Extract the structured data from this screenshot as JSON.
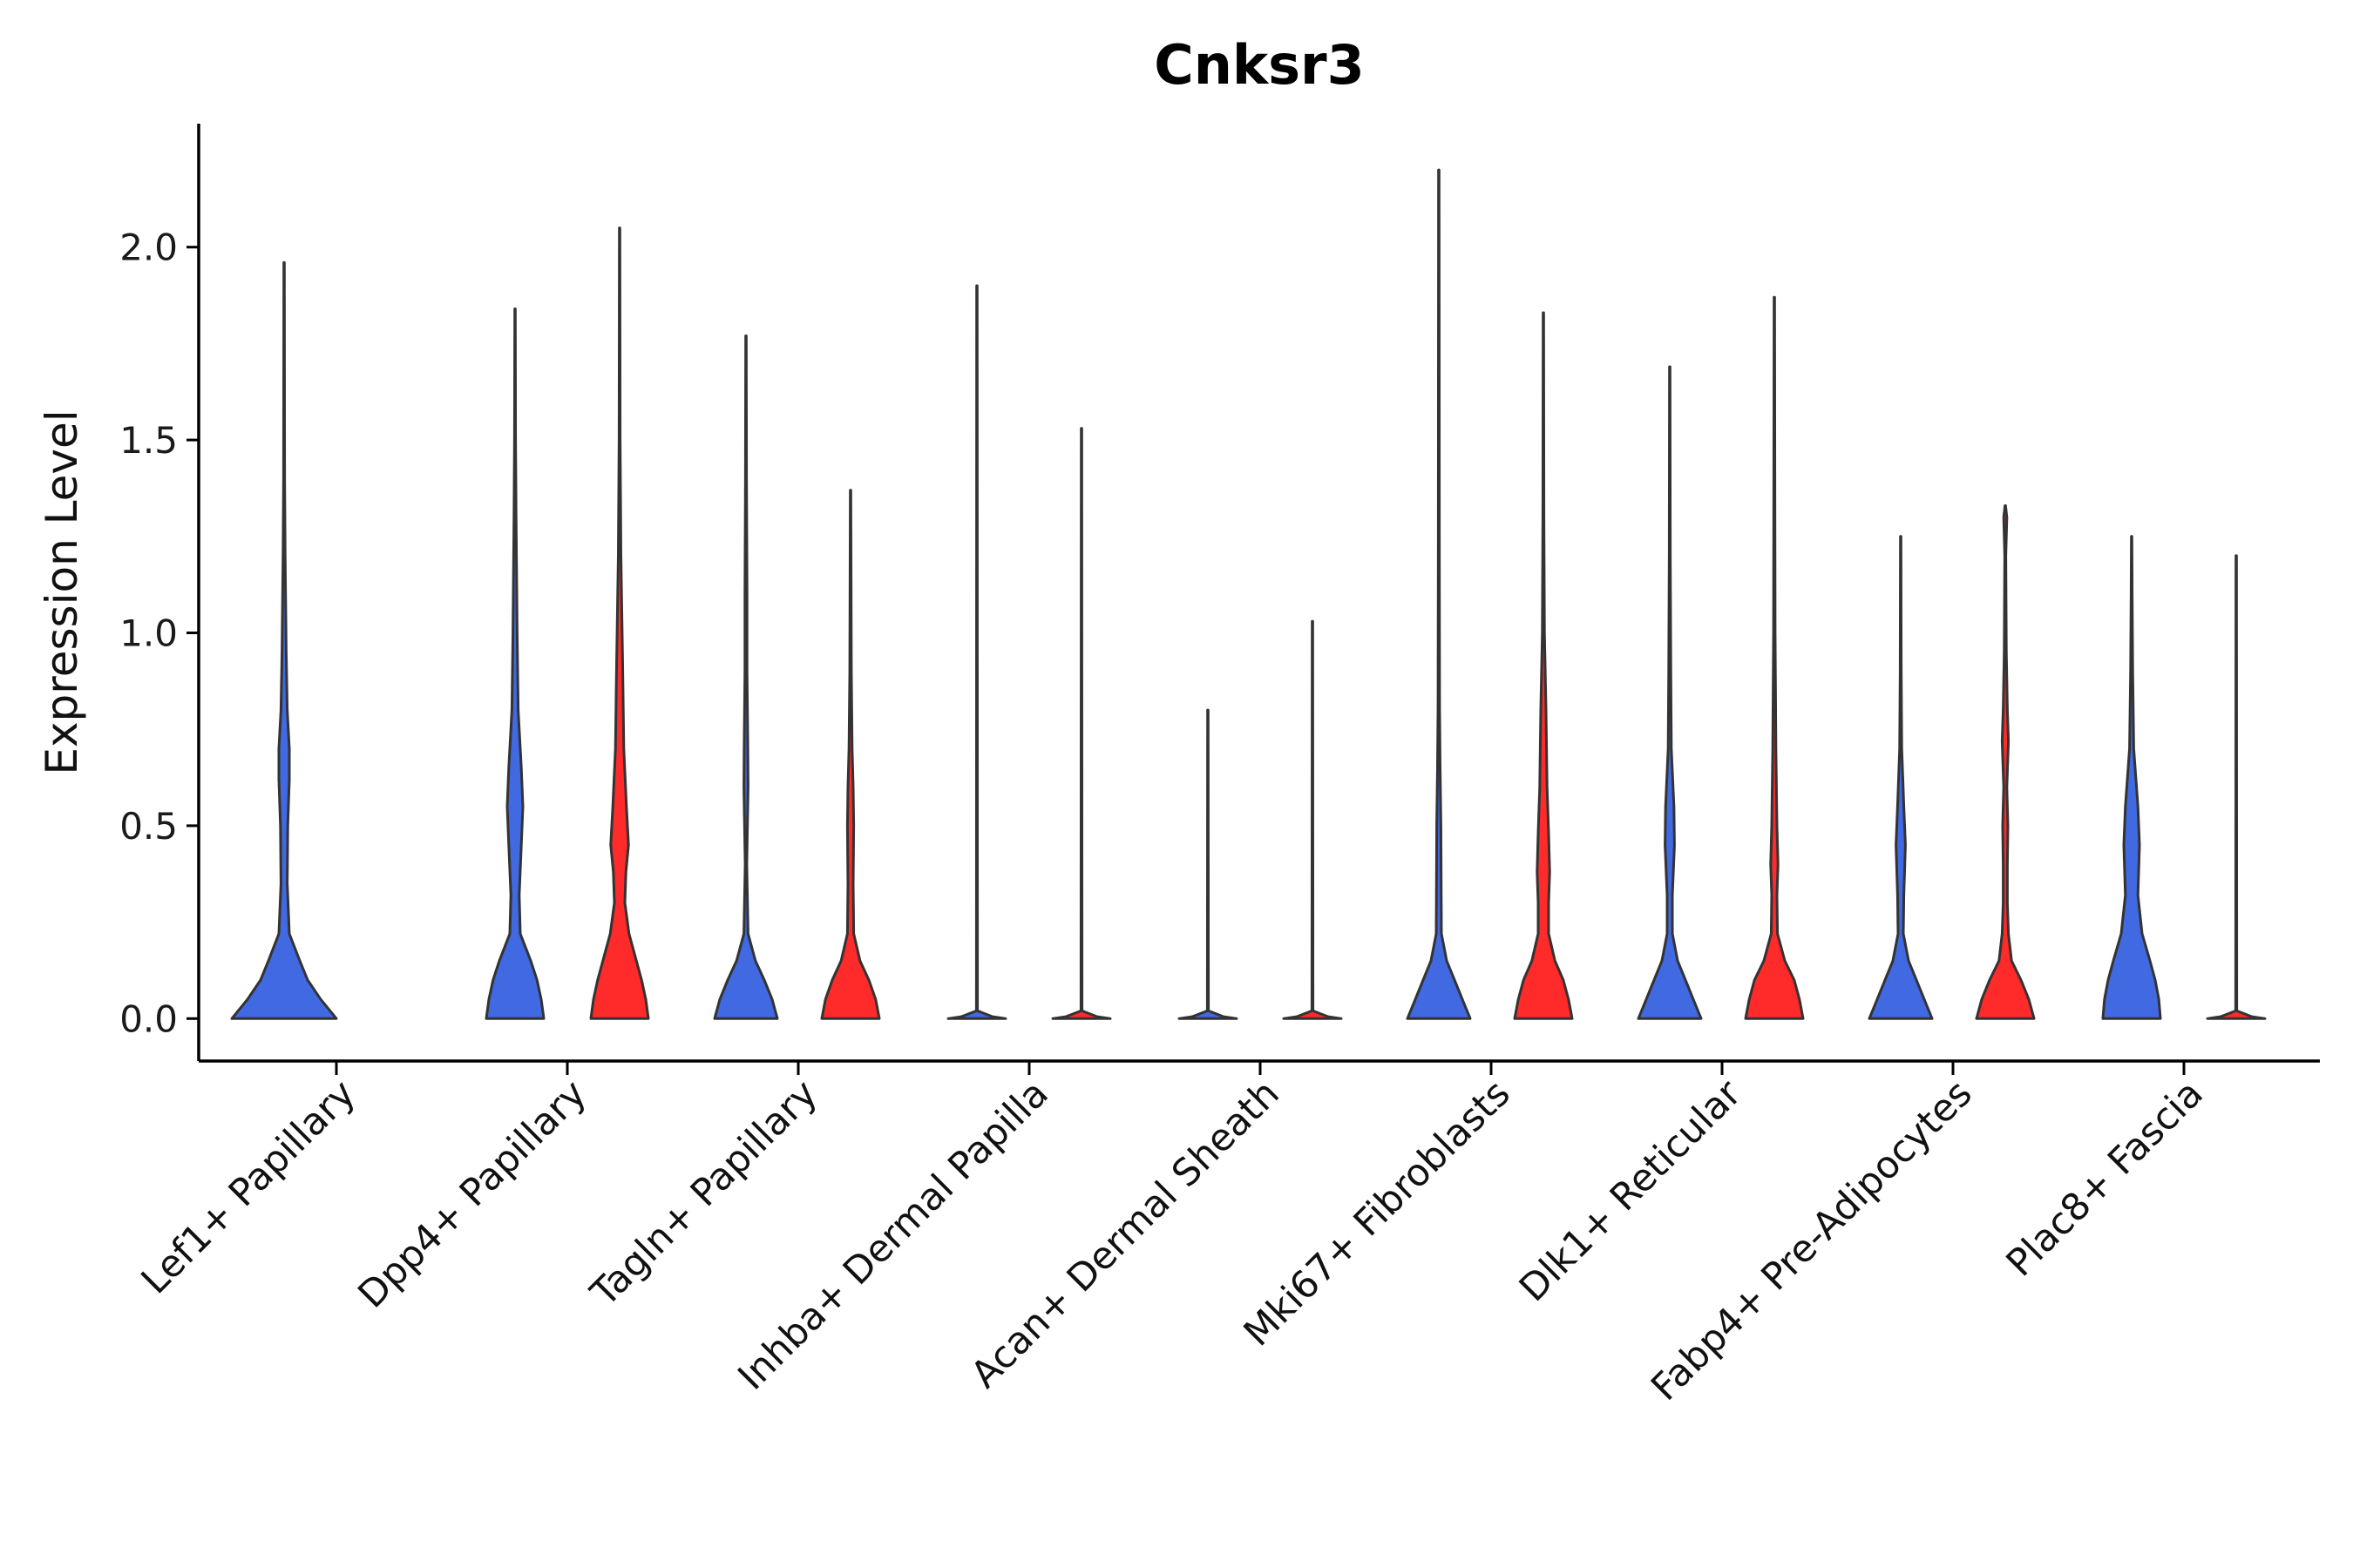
{
  "chart_data": {
    "type": "violin",
    "title": "Cnksr3",
    "xlabel": "",
    "ylabel": "Expression Level",
    "ylim": [
      -0.11,
      2.32
    ],
    "yticks": [
      "0.0",
      "0.5",
      "1.0",
      "1.5",
      "2.0"
    ],
    "ytick_values": [
      0,
      0.5,
      1.0,
      1.5,
      2.0
    ],
    "grid": false,
    "legend": "none",
    "colors": {
      "group1": "#4169e1",
      "group2": "#ff2a2a",
      "outline": "#333333"
    },
    "categories": [
      "Lef1+ Papillary",
      "Dpp4+ Papillary",
      "Tagln+ Papillary",
      "Inhba+ Dermal Papilla",
      "Acan+ Dermal Sheath",
      "Mki67+ Fibroblasts",
      "Dlk1+ Reticular",
      "Fabp4+ Pre-Adipocytes",
      "Plac8+ Fascia"
    ],
    "series": [
      {
        "name": "group1",
        "color": "#4169e1",
        "violins": [
          {
            "max": 1.96,
            "profile": [
              [
                0,
                1.0
              ],
              [
                0.05,
                0.7
              ],
              [
                0.1,
                0.45
              ],
              [
                0.15,
                0.3
              ],
              [
                0.22,
                0.1
              ],
              [
                0.35,
                0.06
              ],
              [
                0.5,
                0.07
              ],
              [
                0.62,
                0.1
              ],
              [
                0.7,
                0.1
              ],
              [
                0.8,
                0.06
              ],
              [
                0.95,
                0.04
              ],
              [
                1.2,
                0.02
              ],
              [
                1.4,
                0.01
              ],
              [
                1.96,
                0.005
              ]
            ]
          },
          {
            "max": 1.84,
            "profile": [
              [
                0,
                0.55
              ],
              [
                0.05,
                0.5
              ],
              [
                0.1,
                0.42
              ],
              [
                0.15,
                0.3
              ],
              [
                0.22,
                0.1
              ],
              [
                0.32,
                0.08
              ],
              [
                0.45,
                0.12
              ],
              [
                0.55,
                0.15
              ],
              [
                0.65,
                0.12
              ],
              [
                0.8,
                0.06
              ],
              [
                1.0,
                0.04
              ],
              [
                1.3,
                0.02
              ],
              [
                1.5,
                0.01
              ],
              [
                1.84,
                0.005
              ]
            ]
          },
          {
            "max": 1.77,
            "profile": [
              [
                0,
                0.6
              ],
              [
                0.05,
                0.5
              ],
              [
                0.1,
                0.35
              ],
              [
                0.15,
                0.18
              ],
              [
                0.22,
                0.04
              ],
              [
                0.4,
                0.015
              ],
              [
                0.6,
                0.04
              ],
              [
                0.7,
                0.035
              ],
              [
                0.9,
                0.02
              ],
              [
                1.1,
                0.02
              ],
              [
                1.4,
                0.01
              ],
              [
                1.77,
                0.005
              ]
            ]
          },
          {
            "max": 1.9,
            "profile": [
              [
                0,
                0.55
              ],
              [
                0.005,
                0.3
              ],
              [
                0.02,
                0.01
              ],
              [
                1.9,
                0.005
              ]
            ]
          },
          {
            "max": 0.8,
            "profile": [
              [
                0,
                0.55
              ],
              [
                0.005,
                0.3
              ],
              [
                0.02,
                0.01
              ],
              [
                0.8,
                0.005
              ]
            ]
          },
          {
            "max": 2.2,
            "profile": [
              [
                0,
                0.6
              ],
              [
                0.05,
                0.45
              ],
              [
                0.1,
                0.3
              ],
              [
                0.15,
                0.15
              ],
              [
                0.22,
                0.05
              ],
              [
                0.35,
                0.045
              ],
              [
                0.5,
                0.04
              ],
              [
                0.65,
                0.025
              ],
              [
                0.8,
                0.015
              ],
              [
                1.2,
                0.01
              ],
              [
                2.2,
                0.005
              ]
            ]
          },
          {
            "max": 1.69,
            "profile": [
              [
                0,
                0.6
              ],
              [
                0.05,
                0.45
              ],
              [
                0.1,
                0.3
              ],
              [
                0.15,
                0.15
              ],
              [
                0.22,
                0.05
              ],
              [
                0.32,
                0.05
              ],
              [
                0.45,
                0.09
              ],
              [
                0.55,
                0.08
              ],
              [
                0.7,
                0.03
              ],
              [
                0.9,
                0.02
              ],
              [
                1.2,
                0.01
              ],
              [
                1.69,
                0.005
              ]
            ]
          },
          {
            "max": 1.25,
            "profile": [
              [
                0,
                0.6
              ],
              [
                0.05,
                0.45
              ],
              [
                0.1,
                0.3
              ],
              [
                0.15,
                0.15
              ],
              [
                0.22,
                0.05
              ],
              [
                0.32,
                0.06
              ],
              [
                0.45,
                0.09
              ],
              [
                0.55,
                0.06
              ],
              [
                0.7,
                0.02
              ],
              [
                0.9,
                0.01
              ],
              [
                1.25,
                0.005
              ]
            ]
          },
          {
            "max": 1.25,
            "profile": [
              [
                0,
                0.55
              ],
              [
                0.05,
                0.52
              ],
              [
                0.1,
                0.45
              ],
              [
                0.15,
                0.35
              ],
              [
                0.22,
                0.2
              ],
              [
                0.32,
                0.12
              ],
              [
                0.45,
                0.15
              ],
              [
                0.55,
                0.12
              ],
              [
                0.7,
                0.04
              ],
              [
                0.9,
                0.02
              ],
              [
                1.1,
                0.01
              ],
              [
                1.25,
                0.005
              ]
            ]
          }
        ]
      },
      {
        "name": "group2",
        "color": "#ff2a2a",
        "violins": [
          null,
          {
            "max": 2.05,
            "profile": [
              [
                0,
                0.55
              ],
              [
                0.05,
                0.5
              ],
              [
                0.1,
                0.42
              ],
              [
                0.15,
                0.32
              ],
              [
                0.22,
                0.18
              ],
              [
                0.3,
                0.1
              ],
              [
                0.38,
                0.12
              ],
              [
                0.45,
                0.17
              ],
              [
                0.55,
                0.13
              ],
              [
                0.7,
                0.08
              ],
              [
                0.9,
                0.06
              ],
              [
                1.2,
                0.025
              ],
              [
                1.5,
                0.01
              ],
              [
                2.05,
                0.005
              ]
            ]
          },
          {
            "max": 1.37,
            "profile": [
              [
                0,
                0.55
              ],
              [
                0.05,
                0.48
              ],
              [
                0.1,
                0.35
              ],
              [
                0.15,
                0.18
              ],
              [
                0.22,
                0.06
              ],
              [
                0.35,
                0.05
              ],
              [
                0.5,
                0.06
              ],
              [
                0.6,
                0.05
              ],
              [
                0.7,
                0.03
              ],
              [
                0.9,
                0.015
              ],
              [
                1.37,
                0.005
              ]
            ]
          },
          {
            "max": 1.53,
            "profile": [
              [
                0,
                0.55
              ],
              [
                0.005,
                0.3
              ],
              [
                0.02,
                0.01
              ],
              [
                1.53,
                0.005
              ]
            ]
          },
          {
            "max": 1.03,
            "profile": [
              [
                0,
                0.55
              ],
              [
                0.005,
                0.3
              ],
              [
                0.02,
                0.01
              ],
              [
                1.03,
                0.005
              ]
            ]
          },
          {
            "max": 1.83,
            "profile": [
              [
                0,
                0.55
              ],
              [
                0.05,
                0.48
              ],
              [
                0.1,
                0.38
              ],
              [
                0.15,
                0.22
              ],
              [
                0.22,
                0.1
              ],
              [
                0.3,
                0.1
              ],
              [
                0.38,
                0.12
              ],
              [
                0.48,
                0.1
              ],
              [
                0.6,
                0.07
              ],
              [
                0.8,
                0.05
              ],
              [
                1.0,
                0.02
              ],
              [
                1.3,
                0.01
              ],
              [
                1.83,
                0.005
              ]
            ]
          },
          {
            "max": 1.87,
            "profile": [
              [
                0,
                0.55
              ],
              [
                0.05,
                0.48
              ],
              [
                0.1,
                0.38
              ],
              [
                0.15,
                0.2
              ],
              [
                0.22,
                0.06
              ],
              [
                0.32,
                0.05
              ],
              [
                0.4,
                0.07
              ],
              [
                0.5,
                0.05
              ],
              [
                0.7,
                0.03
              ],
              [
                1.0,
                0.015
              ],
              [
                1.4,
                0.01
              ],
              [
                1.87,
                0.005
              ]
            ]
          },
          {
            "max": 1.33,
            "profile": [
              [
                0,
                0.55
              ],
              [
                0.05,
                0.45
              ],
              [
                0.1,
                0.3
              ],
              [
                0.15,
                0.12
              ],
              [
                0.22,
                0.06
              ],
              [
                0.3,
                0.04
              ],
              [
                0.4,
                0.04
              ],
              [
                0.5,
                0.05
              ],
              [
                0.6,
                0.03
              ],
              [
                0.72,
                0.06
              ],
              [
                0.8,
                0.04
              ],
              [
                0.95,
                0.02
              ],
              [
                1.2,
                0.01
              ],
              [
                1.3,
                0.03
              ],
              [
                1.33,
                0.005
              ]
            ]
          },
          {
            "max": 1.2,
            "profile": [
              [
                0,
                0.55
              ],
              [
                0.005,
                0.3
              ],
              [
                0.02,
                0.01
              ],
              [
                1.2,
                0.005
              ]
            ]
          }
        ]
      }
    ]
  }
}
